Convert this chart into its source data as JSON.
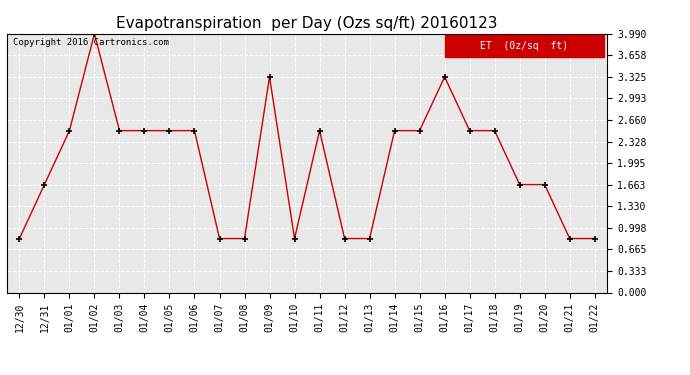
{
  "title": "Evapotranspiration  per Day (Ozs sq/ft) 20160123",
  "copyright": "Copyright 2016 Cartronics.com",
  "legend_label": "ET  (0z/sq  ft)",
  "x_labels": [
    "12/30",
    "12/31",
    "01/01",
    "01/02",
    "01/03",
    "01/04",
    "01/05",
    "01/06",
    "01/07",
    "01/08",
    "01/09",
    "01/10",
    "01/11",
    "01/12",
    "01/13",
    "01/14",
    "01/15",
    "01/16",
    "01/17",
    "01/18",
    "01/19",
    "01/20",
    "01/21",
    "01/22"
  ],
  "y_values": [
    0.832,
    1.664,
    2.496,
    3.99,
    2.496,
    2.496,
    2.496,
    2.496,
    0.832,
    0.832,
    3.325,
    0.832,
    2.496,
    0.832,
    0.832,
    2.496,
    2.496,
    3.325,
    2.496,
    2.496,
    1.664,
    1.664,
    0.832,
    0.832
  ],
  "y_ticks": [
    0.0,
    0.333,
    0.665,
    0.998,
    1.33,
    1.663,
    1.995,
    2.328,
    2.66,
    2.993,
    3.325,
    3.658,
    3.99
  ],
  "ylim": [
    0.0,
    3.99
  ],
  "line_color": "#cc0000",
  "marker_color": "black",
  "bg_color": "#ffffff",
  "plot_bg_color": "#e8e8e8",
  "grid_color": "#ffffff",
  "title_fontsize": 11,
  "copyright_fontsize": 6.5,
  "tick_fontsize": 7,
  "legend_bg": "#cc0000",
  "legend_text_color": "white",
  "legend_fontsize": 7
}
